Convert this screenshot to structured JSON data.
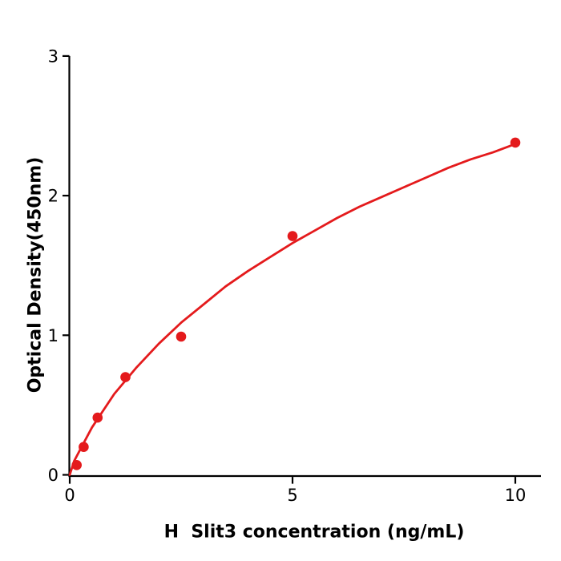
{
  "chart_data": {
    "type": "scatter",
    "subtype": "elisa-standard-curve",
    "title": "",
    "xlabel": "H  Slit3 concentration (ng/mL)",
    "ylabel": "Optical Density(450nm)",
    "xlim": [
      0,
      10.6
    ],
    "ylim": [
      0,
      3
    ],
    "x_ticks": [
      0,
      5,
      10
    ],
    "y_ticks": [
      0,
      1,
      2,
      3
    ],
    "grid": false,
    "legend": "none",
    "colors": {
      "series": "#e41a1c",
      "axis": "#000000",
      "background": "#ffffff"
    },
    "points": {
      "x": [
        0.156,
        0.3125,
        0.625,
        1.25,
        2.5,
        5,
        10
      ],
      "y": [
        0.07,
        0.2,
        0.41,
        0.7,
        0.99,
        1.71,
        2.38
      ]
    },
    "fit_curve": {
      "description": "smooth saturating dose-response fit from origin through (10, 2.37)",
      "x": [
        0,
        0.1,
        0.25,
        0.5,
        0.75,
        1,
        1.5,
        2,
        2.5,
        3,
        3.5,
        4,
        4.5,
        5,
        5.5,
        6,
        6.5,
        7,
        7.5,
        8,
        8.5,
        9,
        9.5,
        10
      ],
      "y": [
        0,
        0.1,
        0.19,
        0.34,
        0.46,
        0.58,
        0.77,
        0.94,
        1.09,
        1.22,
        1.35,
        1.46,
        1.56,
        1.66,
        1.75,
        1.84,
        1.92,
        1.99,
        2.06,
        2.13,
        2.2,
        2.26,
        2.31,
        2.37
      ]
    }
  }
}
